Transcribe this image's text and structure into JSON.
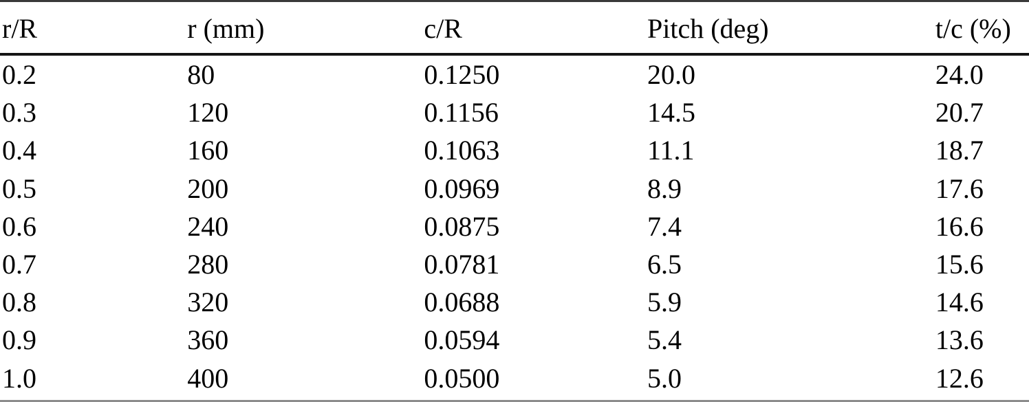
{
  "table": {
    "columns": [
      "r/R",
      "r (mm)",
      "c/R",
      "Pitch (deg)",
      "t/c (%)"
    ],
    "rows": [
      [
        "0.2",
        "80",
        "0.1250",
        "20.0",
        "24.0"
      ],
      [
        "0.3",
        "120",
        "0.1156",
        "14.5",
        "20.7"
      ],
      [
        "0.4",
        "160",
        "0.1063",
        "11.1",
        "18.7"
      ],
      [
        "0.5",
        "200",
        "0.0969",
        "8.9",
        "17.6"
      ],
      [
        "0.6",
        "240",
        "0.0875",
        "7.4",
        "16.6"
      ],
      [
        "0.7",
        "280",
        "0.0781",
        "6.5",
        "15.6"
      ],
      [
        "0.8",
        "320",
        "0.0688",
        "5.9",
        "14.6"
      ],
      [
        "0.9",
        "360",
        "0.0594",
        "5.4",
        "13.6"
      ],
      [
        "1.0",
        "400",
        "0.0500",
        "5.0",
        "12.6"
      ]
    ]
  }
}
